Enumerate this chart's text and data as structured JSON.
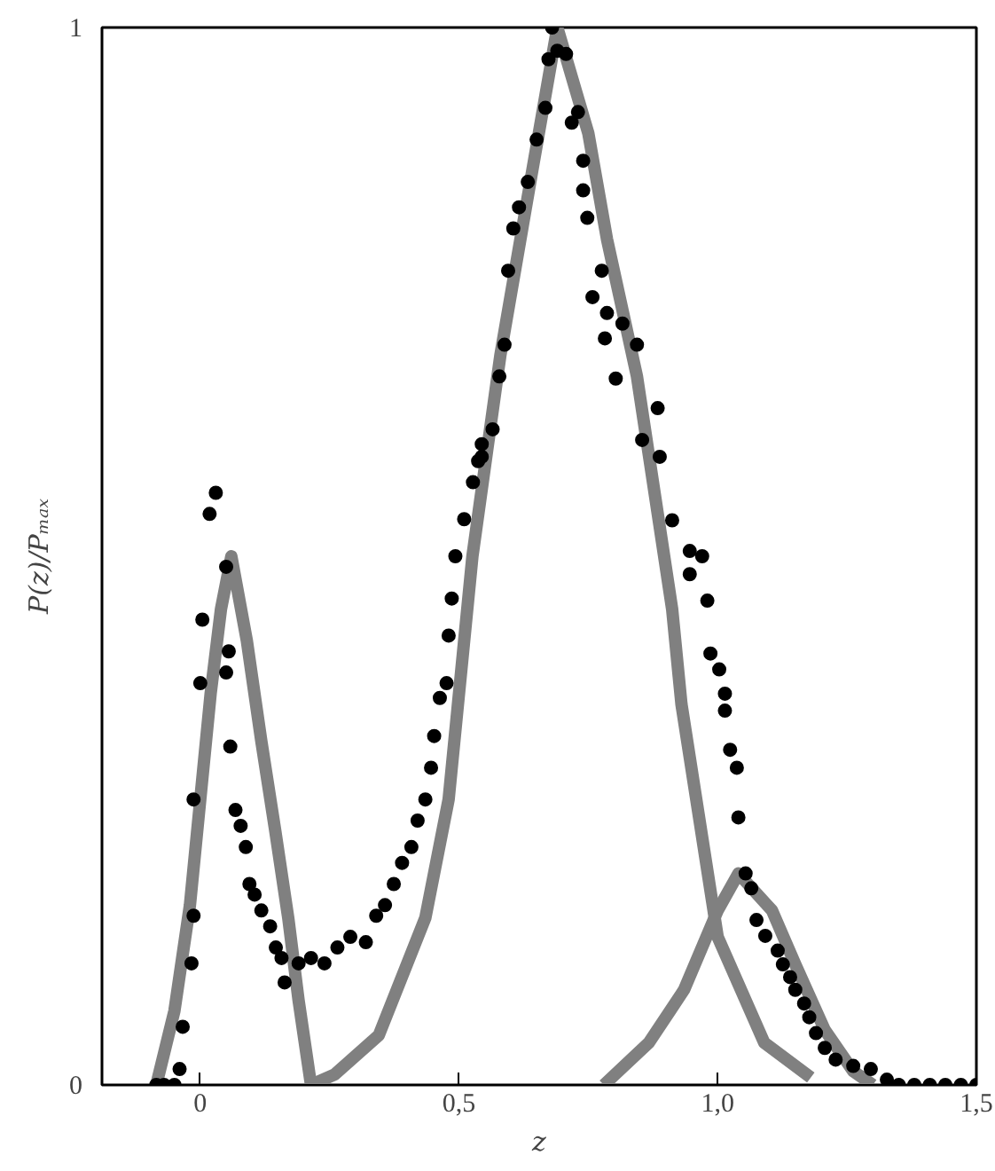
{
  "chart_data": {
    "type": "scatter",
    "xlabel": "z",
    "ylabel": "P(z)/Pₘₐₓ",
    "xlim": [
      -0.19,
      1.5
    ],
    "ylim": [
      0,
      1
    ],
    "xticks": [
      0,
      {
        "value": 0.5,
        "label": "0,5"
      },
      {
        "value": 1.0,
        "label": "1,0"
      },
      {
        "value": 1.5,
        "label": "1,5"
      }
    ],
    "yticks": [
      0,
      1
    ],
    "grid": false,
    "line_style": "solid",
    "series": [
      {
        "marker": "circle",
        "color": "#000000",
        "x": [
          -0.085,
          -0.07,
          -0.05,
          -0.04,
          -0.034,
          -0.017,
          -0.013,
          -0.013,
          0.0,
          0.004,
          0.018,
          0.03,
          0.05,
          0.055,
          0.05,
          0.058,
          0.068,
          0.078,
          0.088,
          0.095,
          0.105,
          0.118,
          0.135,
          0.146,
          0.157,
          0.163,
          0.19,
          0.214,
          0.24,
          0.265,
          0.29,
          0.32,
          0.34,
          0.357,
          0.374,
          0.39,
          0.408,
          0.42,
          0.435,
          0.446,
          0.452,
          0.463,
          0.476,
          0.48,
          0.486,
          0.493,
          0.51,
          0.527,
          0.537,
          0.544,
          0.544,
          0.565,
          0.578,
          0.588,
          0.595,
          0.605,
          0.616,
          0.633,
          0.65,
          0.667,
          0.673,
          0.69,
          0.68,
          0.707,
          0.718,
          0.73,
          0.74,
          0.74,
          0.748,
          0.776,
          0.758,
          0.786,
          0.816,
          0.782,
          0.844,
          0.803,
          0.884,
          0.854,
          0.888,
          0.912,
          0.946,
          0.946,
          0.97,
          0.98,
          0.986,
          1.003,
          1.014,
          1.014,
          1.024,
          1.037,
          1.04,
          1.054,
          1.065,
          1.075,
          1.092,
          1.116,
          1.126,
          1.14,
          1.15,
          1.167,
          1.177,
          1.19,
          1.207,
          1.228,
          1.262,
          1.296,
          1.327,
          1.35,
          1.38,
          1.41,
          1.44,
          1.47,
          1.5
        ],
        "values": [
          0,
          0,
          0,
          0.015,
          0.055,
          0.115,
          0.16,
          0.27,
          0.38,
          0.44,
          0.54,
          0.56,
          0.49,
          0.41,
          0.39,
          0.32,
          0.26,
          0.245,
          0.225,
          0.19,
          0.18,
          0.165,
          0.15,
          0.13,
          0.12,
          0.097,
          0.115,
          0.12,
          0.115,
          0.13,
          0.14,
          0.135,
          0.16,
          0.17,
          0.19,
          0.21,
          0.225,
          0.25,
          0.27,
          0.3,
          0.33,
          0.366,
          0.38,
          0.425,
          0.46,
          0.5,
          0.535,
          0.57,
          0.59,
          0.594,
          0.606,
          0.62,
          0.67,
          0.7,
          0.77,
          0.81,
          0.83,
          0.854,
          0.894,
          0.924,
          0.97,
          0.978,
          1.0,
          0.975,
          0.91,
          0.92,
          0.874,
          0.846,
          0.82,
          0.77,
          0.745,
          0.73,
          0.72,
          0.706,
          0.7,
          0.668,
          0.64,
          0.61,
          0.594,
          0.534,
          0.505,
          0.483,
          0.5,
          0.458,
          0.408,
          0.393,
          0.37,
          0.354,
          0.317,
          0.3,
          0.253,
          0.2,
          0.186,
          0.156,
          0.141,
          0.127,
          0.114,
          0.102,
          0.09,
          0.077,
          0.064,
          0.049,
          0.035,
          0.024,
          0.018,
          0.015,
          0.005,
          0,
          0,
          0,
          0,
          0,
          0
        ]
      },
      {
        "type": "line",
        "color": "#808080",
        "x": [
          -0.085,
          -0.05,
          -0.02,
          0.0,
          0.02,
          0.04,
          0.06,
          0.09,
          0.118,
          0.145,
          0.17,
          0.19,
          0.214
        ],
        "values": [
          0,
          0.07,
          0.17,
          0.27,
          0.37,
          0.45,
          0.5,
          0.42,
          0.325,
          0.24,
          0.158,
          0.08,
          0
        ]
      },
      {
        "type": "line",
        "color": "#808080",
        "x": [
          0.214,
          0.26,
          0.345,
          0.435,
          0.48,
          0.526,
          0.58,
          0.64,
          0.69,
          0.75,
          0.786,
          0.844,
          0.912,
          0.93,
          1.0,
          1.09,
          1.18
        ],
        "values": [
          0,
          0.01,
          0.047,
          0.158,
          0.27,
          0.5,
          0.69,
          0.86,
          1.0,
          0.9,
          0.8,
          0.67,
          0.45,
          0.36,
          0.14,
          0.04,
          0.007
        ]
      },
      {
        "type": "line",
        "color": "#808080",
        "x": [
          0.78,
          0.867,
          0.935,
          1.0,
          1.04,
          1.105,
          1.15,
          1.207,
          1.262,
          1.3
        ],
        "values": [
          0,
          0.04,
          0.09,
          0.165,
          0.2,
          0.165,
          0.114,
          0.052,
          0.013,
          0
        ]
      }
    ]
  }
}
